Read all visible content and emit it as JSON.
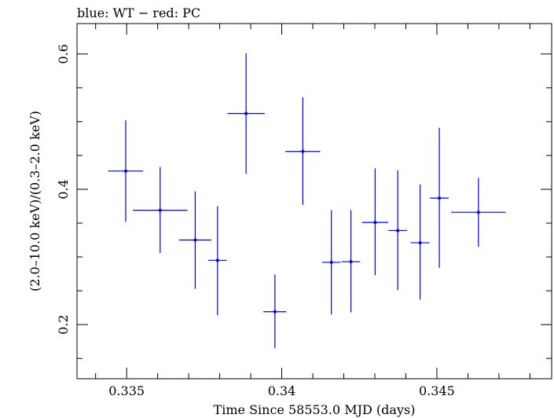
{
  "chart_data": {
    "type": "scatter",
    "title": "blue: WT − red: PC",
    "xlabel": "Time Since 58553.0 MJD (days)",
    "ylabel": "(2.0–10.0 keV)/(0.3–2.0 keV)",
    "xlim": [
      0.3334,
      0.3487
    ],
    "ylim": [
      0.12,
      0.645
    ],
    "x_ticks": [
      {
        "value": 0.335,
        "label": "0.335"
      },
      {
        "value": 0.34,
        "label": "0.34"
      },
      {
        "value": 0.345,
        "label": "0.345"
      }
    ],
    "x_minor_step": 0.001,
    "y_ticks": [
      {
        "value": 0.2,
        "label": "0.2"
      },
      {
        "value": 0.4,
        "label": "0.4"
      },
      {
        "value": 0.6,
        "label": "0.6"
      }
    ],
    "y_minor_step": 0.05,
    "grid": false,
    "series": [
      {
        "color": "#0000ee",
        "points": [
          {
            "x": 0.33497,
            "xerr": 0.00056,
            "y": 0.427,
            "ylo": 0.352,
            "yhi": 0.502
          },
          {
            "x": 0.33608,
            "xerr": 0.00088,
            "y": 0.369,
            "ylo": 0.306,
            "yhi": 0.433
          },
          {
            "x": 0.33721,
            "xerr": 0.00052,
            "y": 0.325,
            "ylo": 0.253,
            "yhi": 0.397
          },
          {
            "x": 0.33793,
            "xerr": 0.0003,
            "y": 0.295,
            "ylo": 0.214,
            "yhi": 0.375
          },
          {
            "x": 0.33885,
            "xerr": 0.0006,
            "y": 0.512,
            "ylo": 0.423,
            "yhi": 0.601
          },
          {
            "x": 0.33978,
            "xerr": 0.00037,
            "y": 0.219,
            "ylo": 0.165,
            "yhi": 0.274
          },
          {
            "x": 0.34068,
            "xerr": 0.00056,
            "y": 0.456,
            "ylo": 0.377,
            "yhi": 0.536
          },
          {
            "x": 0.3416,
            "xerr": 0.0003,
            "y": 0.292,
            "ylo": 0.215,
            "yhi": 0.369
          },
          {
            "x": 0.34223,
            "xerr": 0.0003,
            "y": 0.293,
            "ylo": 0.218,
            "yhi": 0.369
          },
          {
            "x": 0.34301,
            "xerr": 0.00042,
            "y": 0.351,
            "ylo": 0.273,
            "yhi": 0.431
          },
          {
            "x": 0.34374,
            "xerr": 0.0003,
            "y": 0.339,
            "ylo": 0.251,
            "yhi": 0.428
          },
          {
            "x": 0.34446,
            "xerr": 0.0003,
            "y": 0.321,
            "ylo": 0.237,
            "yhi": 0.407
          },
          {
            "x": 0.34508,
            "xerr": 0.0003,
            "y": 0.387,
            "ylo": 0.284,
            "yhi": 0.491
          },
          {
            "x": 0.34634,
            "xerr": 0.00088,
            "y": 0.366,
            "ylo": 0.315,
            "yhi": 0.417
          }
        ]
      }
    ]
  }
}
